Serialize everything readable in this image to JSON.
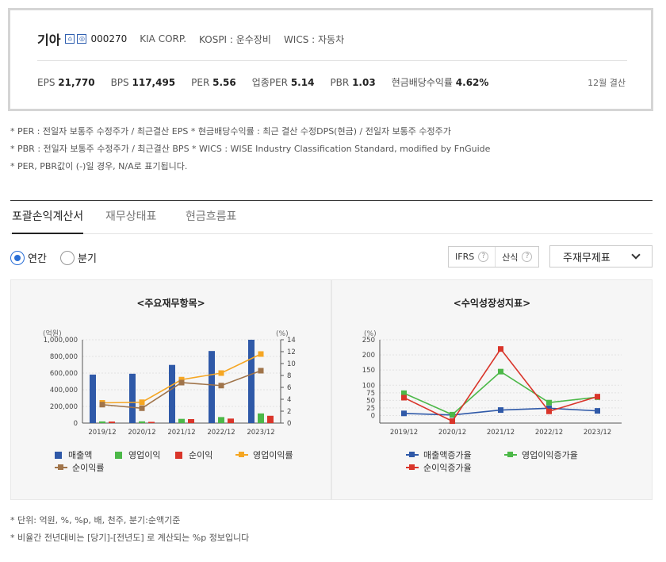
{
  "company": {
    "name": "기아",
    "code": "000270",
    "eng_name": "KIA CORP.",
    "market": "KOSPI : 운수장비",
    "wics": "WICS : 자동차"
  },
  "stats": [
    {
      "label": "EPS",
      "value": "21,770"
    },
    {
      "label": "BPS",
      "value": "117,495"
    },
    {
      "label": "PER",
      "value": "5.56"
    },
    {
      "label": "업종PER",
      "value": "5.14"
    },
    {
      "label": "PBR",
      "value": "1.03"
    },
    {
      "label": "현금배당수익률",
      "value": "4.62%"
    }
  ],
  "settlement": "12월 결산",
  "notes": [
    "* PER : 전일자 보통주 수정주가 / 최근결산 EPS * 현금배당수익률 : 최근 결산 수정DPS(현금) / 전일자 보통주 수정주가",
    "* PBR : 전일자 보통주 수정주가 / 최근결산 BPS * WICS : WISE Industry Classification Standard, modified by FnGuide",
    "* PER, PBR값이 (-)일 경우, N/A로 표기됩니다."
  ],
  "tabs": [
    "포괄손익계산서",
    "재무상태표",
    "현금흐름표"
  ],
  "period": {
    "annual": "연간",
    "quarter": "분기"
  },
  "options": {
    "ifrs": "IFRS",
    "calc": "산식",
    "help": "?"
  },
  "select": {
    "value": "주재무제표"
  },
  "footnotes": [
    "* 단위: 억원, %, %p, 배, 천주, 분기:순액기준",
    "* 비율간 전년대비는 [당기]-[전년도] 로 계산되는 %p 정보입니다"
  ],
  "chart_data": [
    {
      "type": "bar",
      "title": "<주요재무항목>",
      "ylabel": "(억원)",
      "y2label": "(%)",
      "categories": [
        "2019/12",
        "2020/12",
        "2021/12",
        "2022/12",
        "2023/12"
      ],
      "ylim": [
        0,
        1000000
      ],
      "y_ticks": [
        "0",
        "200,000",
        "400,000",
        "600,000",
        "800,000",
        "1,000,000"
      ],
      "y2lim": [
        0,
        14
      ],
      "y2_ticks": [
        "0",
        "2",
        "4",
        "6",
        "8",
        "10",
        "12",
        "14"
      ],
      "series": [
        {
          "name": "매출액",
          "kind": "bar",
          "color": "#2f59a8",
          "values": [
            582000,
            592000,
            698000,
            865000,
            1000000
          ]
        },
        {
          "name": "영업이익",
          "kind": "bar",
          "color": "#4cb848",
          "values": [
            20100,
            20700,
            50700,
            72300,
            116100
          ]
        },
        {
          "name": "순이익",
          "kind": "bar",
          "color": "#d9352a",
          "values": [
            18300,
            14900,
            47600,
            54100,
            87800
          ]
        },
        {
          "name": "영업이익률",
          "kind": "line",
          "axis": "y2",
          "color": "#f5a623",
          "values": [
            3.4,
            3.5,
            7.3,
            8.4,
            11.6
          ]
        },
        {
          "name": "순이익률",
          "kind": "line",
          "axis": "y2",
          "color": "#a0744a",
          "values": [
            3.1,
            2.5,
            6.8,
            6.3,
            8.8
          ]
        }
      ],
      "legend": "bottom"
    },
    {
      "type": "line",
      "title": "<수익성장성지표>",
      "ylabel": "(%)",
      "categories": [
        "2019/12",
        "2020/12",
        "2021/12",
        "2022/12",
        "2023/12"
      ],
      "ylim": [
        -25,
        250
      ],
      "y_ticks": [
        "0",
        "25",
        "50",
        "75",
        "100",
        "150",
        "200",
        "250"
      ],
      "series": [
        {
          "name": "매출액증가율",
          "color": "#2f59a8",
          "values": [
            7,
            1.8,
            18,
            23.9,
            15.3
          ]
        },
        {
          "name": "영업이익증가율",
          "color": "#4cb848",
          "values": [
            73.6,
            2.8,
            144.8,
            42.5,
            60.5
          ]
        },
        {
          "name": "순이익증가율",
          "color": "#d9352a",
          "values": [
            58.9,
            -18.6,
            219.5,
            13.7,
            62.3
          ]
        }
      ],
      "legend": "bottom"
    }
  ]
}
